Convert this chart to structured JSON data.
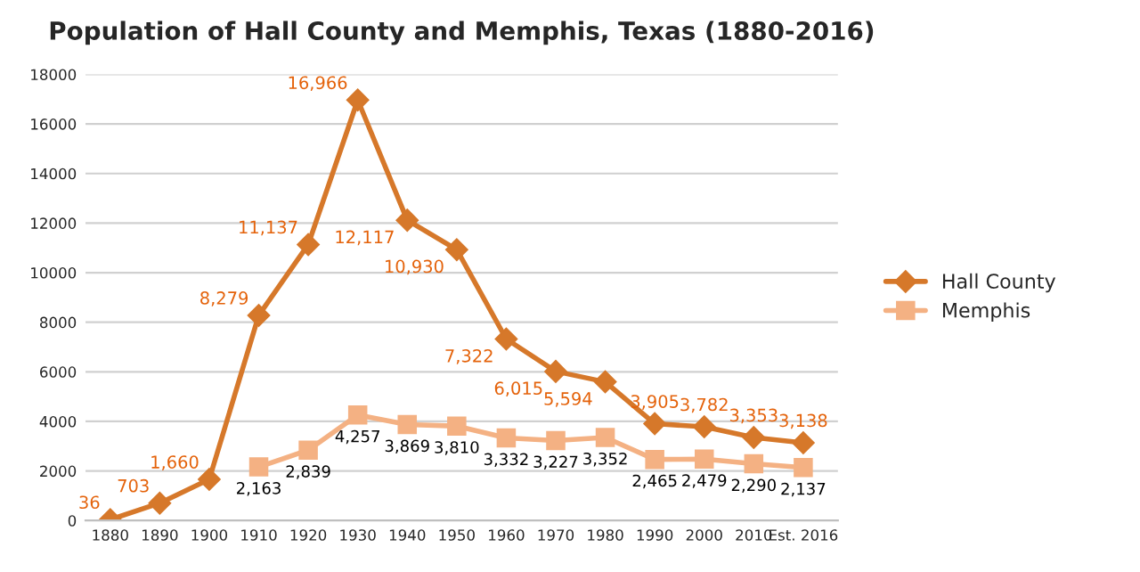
{
  "chart_data": {
    "type": "line",
    "title": "Population of Hall County and Memphis, Texas (1880-2016)",
    "categories": [
      "1880",
      "1890",
      "1900",
      "1910",
      "1920",
      "1930",
      "1940",
      "1950",
      "1960",
      "1970",
      "1980",
      "1990",
      "2000",
      "2010",
      "Est. 2016"
    ],
    "series": [
      {
        "name": "Hall County",
        "color": "#d6782a",
        "marker": "diamond",
        "values": [
          36,
          703,
          1660,
          8279,
          11137,
          16966,
          12117,
          10930,
          7322,
          6015,
          5594,
          3905,
          3782,
          3353,
          3138
        ],
        "value_labels": [
          "36",
          "703",
          "1,660",
          "8,279",
          "11,137",
          "16,966",
          "12,117",
          "10,930",
          "7,322",
          "6,015",
          "5,594",
          "3,905",
          "3,782",
          "3,353",
          "3,138"
        ]
      },
      {
        "name": "Memphis",
        "color": "#f4b183",
        "marker": "square",
        "values": [
          null,
          null,
          null,
          2163,
          2839,
          4257,
          3869,
          3810,
          3332,
          3227,
          3352,
          2465,
          2479,
          2290,
          2137
        ],
        "value_labels": [
          null,
          null,
          null,
          "2,163",
          "2,839",
          "4,257",
          "3,869",
          "3,810",
          "3,332",
          "3,227",
          "3,352",
          "2,465",
          "2,479",
          "2,290",
          "2,137"
        ]
      }
    ],
    "ylim": [
      0,
      18000
    ],
    "yticks": [
      0,
      2000,
      4000,
      6000,
      8000,
      10000,
      12000,
      14000,
      16000,
      18000
    ],
    "grid": "y",
    "legend": "right",
    "line_style": "solid"
  }
}
